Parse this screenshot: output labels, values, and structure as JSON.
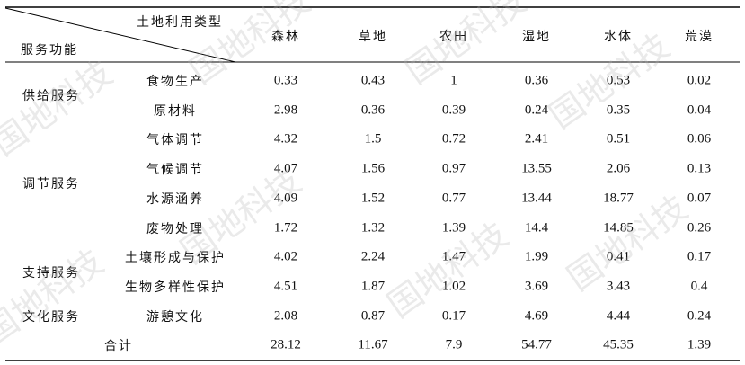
{
  "table": {
    "corner": {
      "top": "土地利用类型",
      "bottom": "服务功能"
    },
    "columns": [
      "森林",
      "草地",
      "农田",
      "湿地",
      "水体",
      "荒漠"
    ],
    "groups": [
      {
        "name": "供给服务",
        "rows": [
          {
            "item": "食物生产",
            "values": [
              "0.33",
              "0.43",
              "1",
              "0.36",
              "0.53",
              "0.02"
            ]
          },
          {
            "item": "原材料",
            "values": [
              "2.98",
              "0.36",
              "0.39",
              "0.24",
              "0.35",
              "0.04"
            ]
          }
        ]
      },
      {
        "name": "调节服务",
        "rows": [
          {
            "item": "气体调节",
            "values": [
              "4.32",
              "1.5",
              "0.72",
              "2.41",
              "0.51",
              "0.06"
            ]
          },
          {
            "item": "气候调节",
            "values": [
              "4.07",
              "1.56",
              "0.97",
              "13.55",
              "2.06",
              "0.13"
            ]
          },
          {
            "item": "水源涵养",
            "values": [
              "4.09",
              "1.52",
              "0.77",
              "13.44",
              "18.77",
              "0.07"
            ]
          },
          {
            "item": "废物处理",
            "values": [
              "1.72",
              "1.32",
              "1.39",
              "14.4",
              "14.85",
              "0.26"
            ]
          }
        ]
      },
      {
        "name": "支持服务",
        "rows": [
          {
            "item": "土壤形成与保护",
            "values": [
              "4.02",
              "2.24",
              "1.47",
              "1.99",
              "0.41",
              "0.17"
            ]
          },
          {
            "item": "生物多样性保护",
            "values": [
              "4.51",
              "1.87",
              "1.02",
              "3.69",
              "3.43",
              "0.4"
            ]
          }
        ]
      },
      {
        "name": "文化服务",
        "rows": [
          {
            "item": "游憩文化",
            "values": [
              "2.08",
              "0.87",
              "0.17",
              "4.69",
              "4.44",
              "0.24"
            ]
          }
        ]
      }
    ],
    "total": {
      "label": "合计",
      "values": [
        "28.12",
        "11.67",
        "7.9",
        "54.77",
        "45.35",
        "1.39"
      ]
    }
  },
  "watermark": "国地科技"
}
